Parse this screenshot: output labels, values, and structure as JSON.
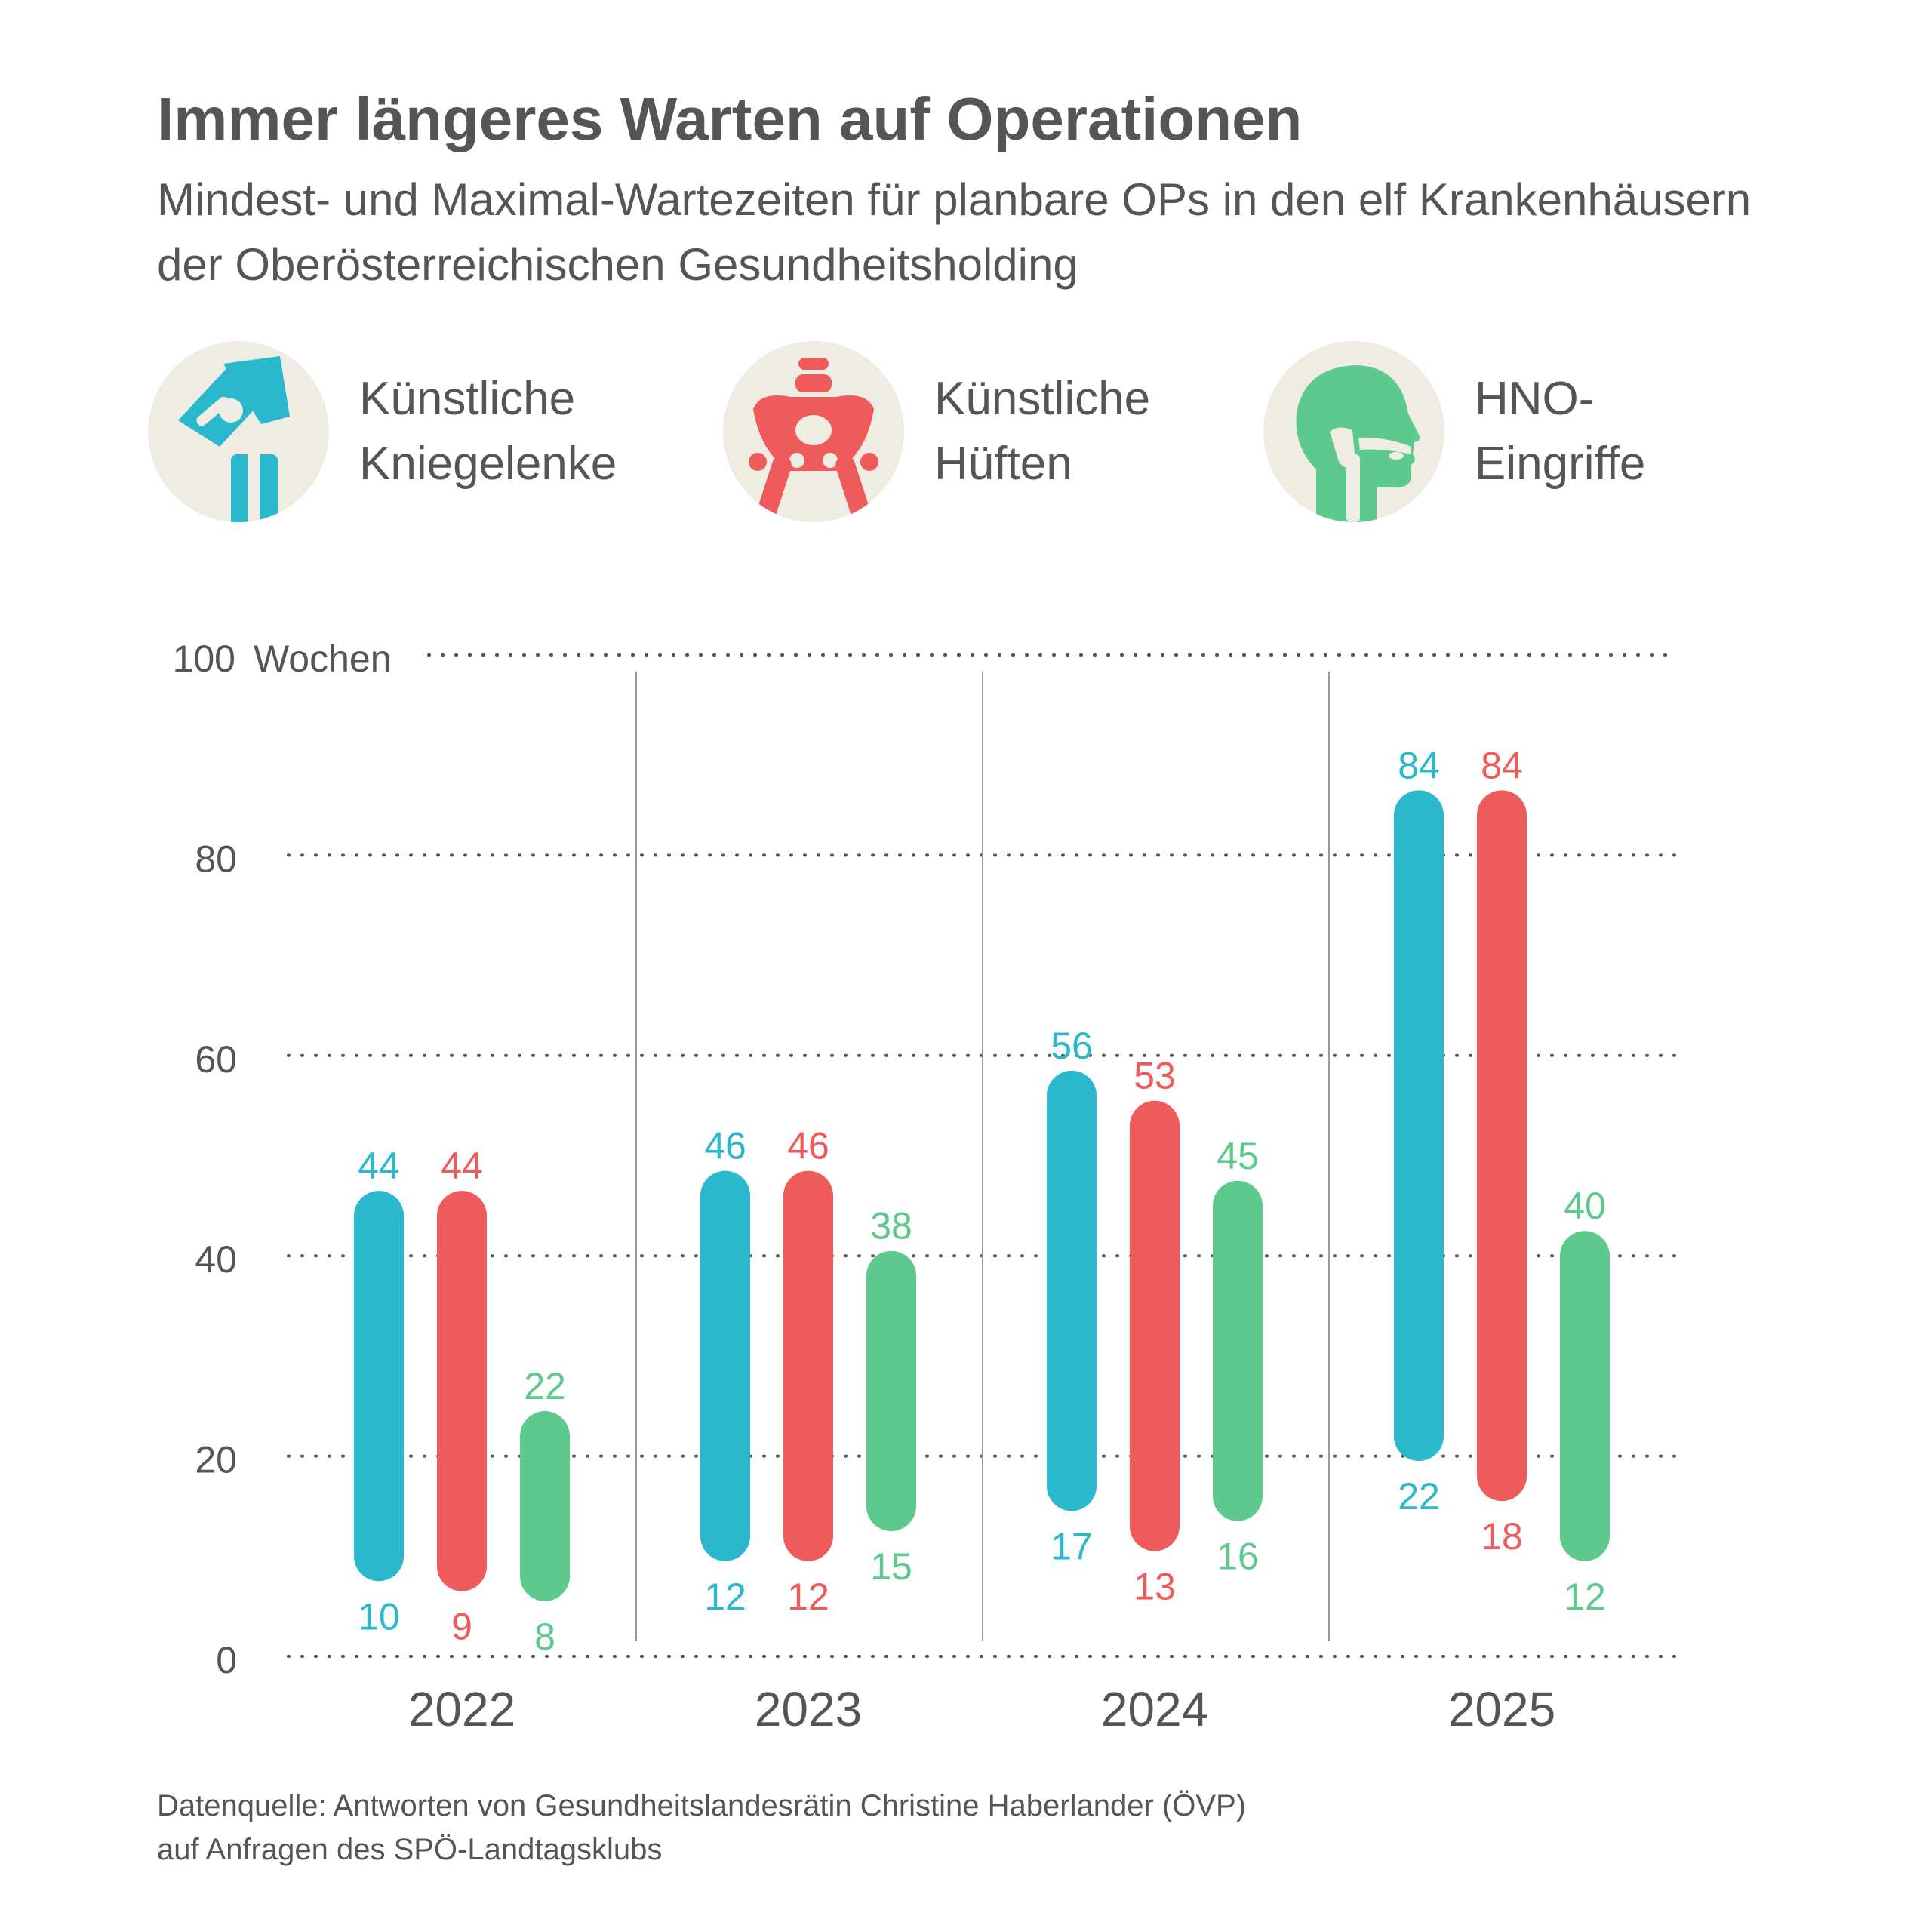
{
  "title": "Immer längeres Warten auf Operationen",
  "subtitle": "Mindest- und Maximal-Wartezeiten für planbare OPs in den elf Krankenhäusern der Oberösterreichischen Gesundheitsholding",
  "legend": [
    {
      "label": "Künstliche\nKniegelenke",
      "color": "#29b8cc",
      "icon": "knee-joint-icon"
    },
    {
      "label": "Künstliche\nHüften",
      "color": "#ef5a5a",
      "icon": "pelvis-icon"
    },
    {
      "label": "HNO-\nEingriffe",
      "color": "#5ec98c",
      "icon": "head-throat-icon"
    }
  ],
  "source": {
    "line1": "Datenquelle: Antworten von Gesundheitslandesrätin Christine Haberlander (ÖVP)",
    "line2": "auf Anfragen des SPÖ-Landtagsklubs"
  },
  "chart_data": {
    "type": "range-bar",
    "unit": "Wochen",
    "ylim": [
      0,
      100
    ],
    "yticks": [
      0,
      20,
      40,
      60,
      80,
      100
    ],
    "ytick_labels": [
      "0",
      "20",
      "40",
      "60",
      "80",
      "100"
    ],
    "grid": "dotted horizontal",
    "categories": [
      "2022",
      "2023",
      "2024",
      "2025"
    ],
    "series": [
      {
        "name": "Künstliche Kniegelenke",
        "color": "#29b8cc",
        "min": [
          10,
          12,
          17,
          22
        ],
        "max": [
          44,
          46,
          56,
          84
        ]
      },
      {
        "name": "Künstliche Hüften",
        "color": "#ef5a5a",
        "min": [
          9,
          12,
          13,
          18
        ],
        "max": [
          44,
          46,
          53,
          84
        ]
      },
      {
        "name": "HNO-Eingriffe",
        "color": "#5ec98c",
        "min": [
          8,
          15,
          16,
          12
        ],
        "max": [
          22,
          38,
          45,
          40
        ]
      }
    ]
  }
}
